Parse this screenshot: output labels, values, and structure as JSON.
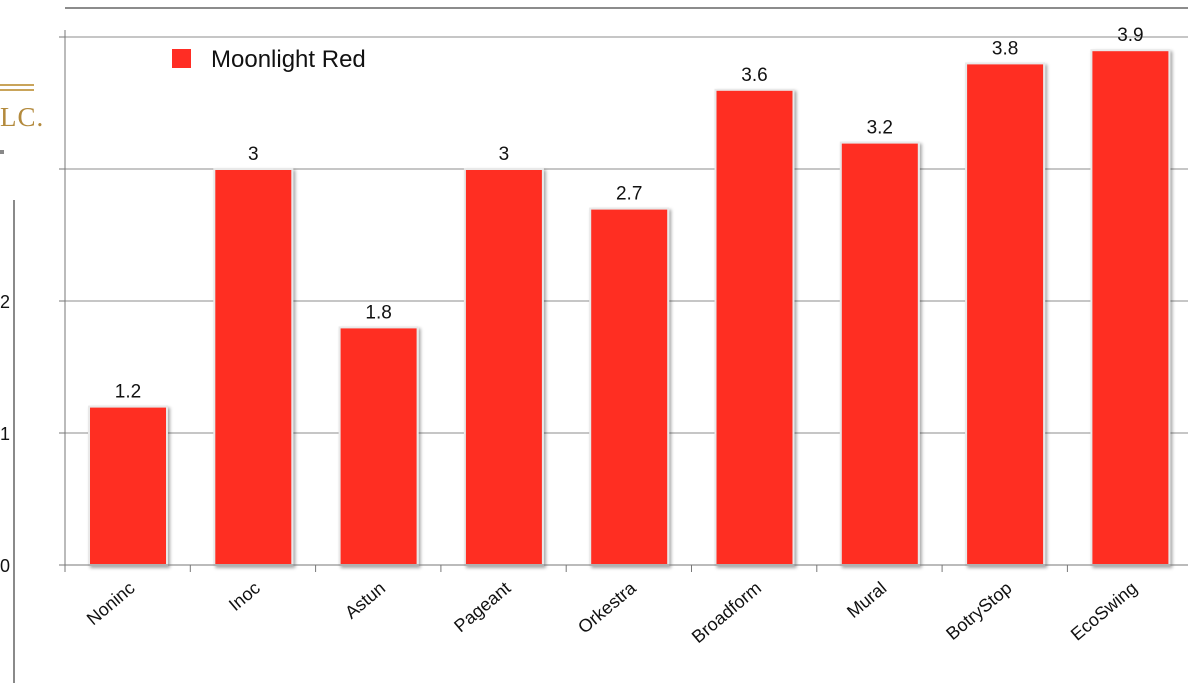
{
  "logo": {
    "text": "LC."
  },
  "colors": {
    "bar": "#ff2d24",
    "grid": "#8c8c8c",
    "axis": "#777777"
  },
  "chart_data": {
    "type": "bar",
    "categories": [
      "Noninc",
      "Inoc",
      "Astun",
      "Pageant",
      "Orkestra",
      "Broadform",
      "Mural",
      "BotryStop",
      "EcoSwing"
    ],
    "series": [
      {
        "name": "Moonlight Red",
        "values": [
          1.2,
          3,
          1.8,
          3,
          2.7,
          3.6,
          3.2,
          3.8,
          3.9
        ]
      }
    ],
    "y_ticks": [
      "0",
      "1",
      "2"
    ],
    "ylim": [
      0,
      4
    ],
    "grid": true,
    "legend": "top-left",
    "data_labels": true
  }
}
